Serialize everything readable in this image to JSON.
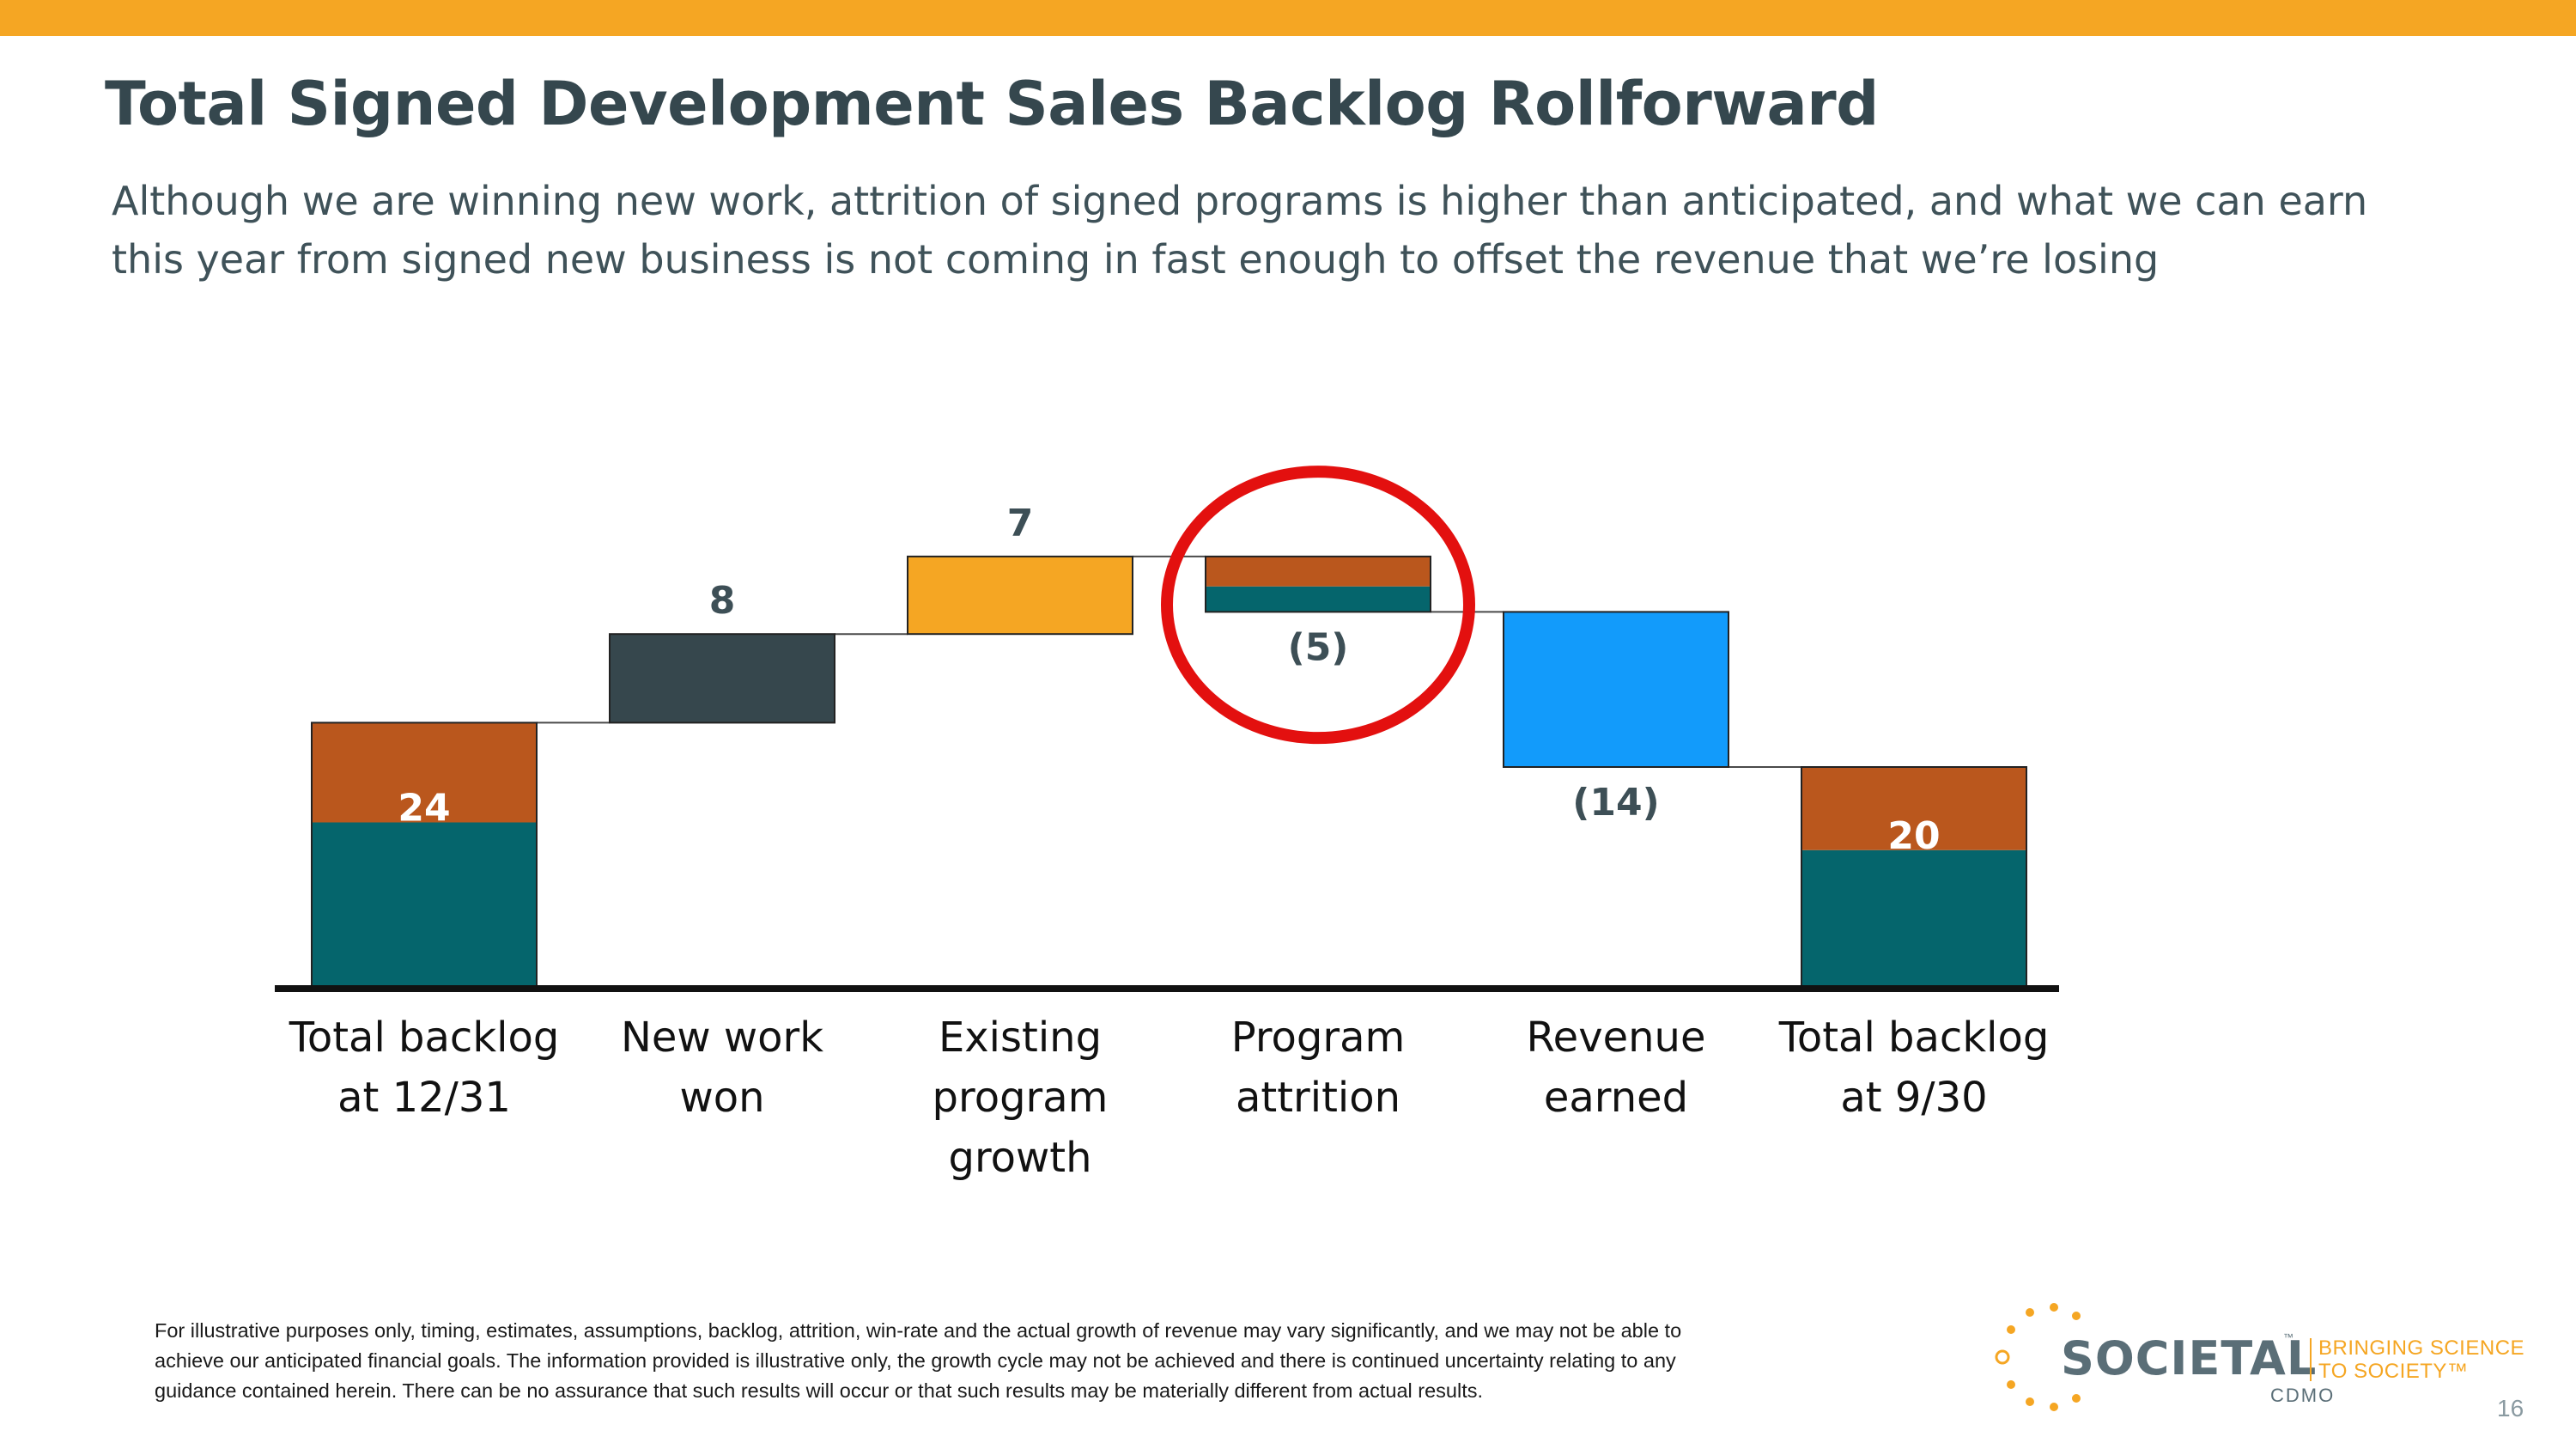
{
  "slide": {
    "title": "Total Signed Development Sales Backlog Rollforward",
    "subtitle_lines": [
      "Although we are winning new work, attrition of signed programs is higher than anticipated, and what we can earn",
      "this year from signed new business is not coming in fast enough to offset the revenue that we’re losing"
    ],
    "disclaimer_lines": [
      "For illustrative purposes only, timing, estimates, assumptions, backlog, attrition, win-rate and the actual growth of revenue may vary significantly, and we may not be able to",
      "achieve our anticipated financial goals. The information provided is illustrative only, the growth cycle may not be achieved and there is continued uncertainty relating to any",
      "guidance contained herein. There can be no assurance that such results will occur or that such results may be materially different from actual results."
    ],
    "page_number": "16"
  },
  "logo": {
    "name": "SOCIETAL",
    "trademark": "™",
    "sub": "CDMO",
    "tagline_lines": [
      "BRINGING SCIENCE",
      "TO SOCIETY™"
    ]
  },
  "colors": {
    "accent": "#F5A623",
    "title_text": "#35474E",
    "teal": "#05656C",
    "rust": "#BA571D",
    "dark_slate": "#36474D",
    "orange": "#F5A623",
    "blue": "#129BFB",
    "highlight_circle": "#E3100F"
  },
  "chart_data": {
    "type": "waterfall",
    "title": "",
    "xlabel": "",
    "ylabel": "",
    "ylim": [
      0,
      35
    ],
    "categories": [
      [
        "Total backlog",
        "at 12/31"
      ],
      [
        "New work",
        "won"
      ],
      [
        "Existing",
        "program",
        "growth"
      ],
      [
        "Program",
        "attrition"
      ],
      [
        "Revenue",
        "earned"
      ],
      [
        "Total backlog",
        "at 9/30"
      ]
    ],
    "bars": [
      {
        "kind": "total",
        "value": 24,
        "label": "24",
        "segments": [
          {
            "value": 15,
            "color": "#05656C"
          },
          {
            "value": 9,
            "color": "#BA571D"
          }
        ]
      },
      {
        "kind": "delta",
        "value": 8,
        "label": "8",
        "color": "#36474D"
      },
      {
        "kind": "delta",
        "value": 7,
        "label": "7",
        "color": "#F5A623"
      },
      {
        "kind": "delta",
        "value": -5,
        "label": "(5)",
        "segments": [
          {
            "value": 2.3,
            "color": "#05656C"
          },
          {
            "value": 2.7,
            "color": "#BA571D"
          }
        ],
        "highlighted": true
      },
      {
        "kind": "delta",
        "value": -14,
        "label": "(14)",
        "color": "#129BFB"
      },
      {
        "kind": "total",
        "value": 20,
        "label": "20",
        "segments": [
          {
            "value": 12.5,
            "color": "#05656C"
          },
          {
            "value": 7.5,
            "color": "#BA571D"
          }
        ]
      }
    ]
  }
}
